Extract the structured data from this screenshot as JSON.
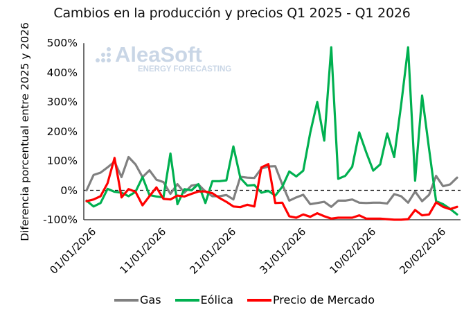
{
  "chart_data": {
    "type": "line",
    "title": "Cambios en la producción y precios Q1 2025 - Q1 2026",
    "xlabel": "",
    "ylabel": "Diferencia porcentual entre 2025 y 2026",
    "ylim": [
      -100,
      500
    ],
    "yticks": [
      "500%",
      "400%",
      "300%",
      "200%",
      "100%",
      "0%",
      "-100%"
    ],
    "ytick_values": [
      500,
      400,
      300,
      200,
      100,
      0,
      -100
    ],
    "xtick_labels": [
      "01/01/2026",
      "11/01/2026",
      "21/01/2026",
      "31/01/2026",
      "10/02/2026",
      "20/02/2026"
    ],
    "xtick_indices": [
      0,
      10,
      20,
      30,
      40,
      50
    ],
    "x_start": "01/01/2026",
    "n_points": 54,
    "zero_line": "dashed",
    "grid": false,
    "legend_position": "bottom",
    "series": [
      {
        "name": "Gas",
        "color": "#808080",
        "values": [
          0,
          52,
          60,
          78,
          97,
          45,
          113,
          88,
          45,
          68,
          36,
          28,
          -12,
          21,
          -8,
          16,
          20,
          -4,
          -20,
          -20,
          -16,
          -31,
          46,
          43,
          42,
          74,
          81,
          82,
          20,
          -35,
          -24,
          -15,
          -47,
          -43,
          -39,
          -56,
          -35,
          -35,
          -31,
          -42,
          -43,
          -42,
          -42,
          -45,
          -13,
          -20,
          -42,
          -4,
          -37,
          -15,
          49,
          14,
          20,
          43
        ]
      },
      {
        "name": "Eólica",
        "color": "#00b050",
        "values": [
          -35,
          -55,
          -43,
          5,
          -5,
          -8,
          -20,
          -5,
          45,
          -16,
          -21,
          -24,
          125,
          -47,
          4,
          0,
          21,
          -43,
          31,
          31,
          34,
          149,
          42,
          16,
          18,
          -8,
          -2,
          -18,
          12,
          64,
          47,
          67,
          196,
          300,
          169,
          486,
          39,
          49,
          80,
          197,
          129,
          67,
          88,
          193,
          113,
          290,
          486,
          33,
          322,
          140,
          -37,
          -47,
          -63,
          -82
        ]
      },
      {
        "name": "Precio de Mercado",
        "color": "#ff0000",
        "values": [
          -37,
          -31,
          -20,
          24,
          110,
          -24,
          4,
          -5,
          -51,
          -20,
          10,
          -29,
          -31,
          -18,
          -21,
          -12,
          -4,
          -4,
          -10,
          -26,
          -39,
          -55,
          -57,
          -49,
          -55,
          78,
          89,
          -43,
          -42,
          -88,
          -93,
          -82,
          -90,
          -78,
          -88,
          -96,
          -93,
          -93,
          -93,
          -85,
          -96,
          -96,
          -96,
          -98,
          -100,
          -100,
          -98,
          -67,
          -85,
          -82,
          -41,
          -56,
          -64,
          -56
        ]
      }
    ]
  },
  "watermark": {
    "brand": "AleaSoft",
    "tagline": "ENERGY FORECASTING"
  },
  "legend": [
    {
      "label": "Gas",
      "color": "#808080"
    },
    {
      "label": "Eólica",
      "color": "#00b050"
    },
    {
      "label": "Precio de Mercado",
      "color": "#ff0000"
    }
  ]
}
